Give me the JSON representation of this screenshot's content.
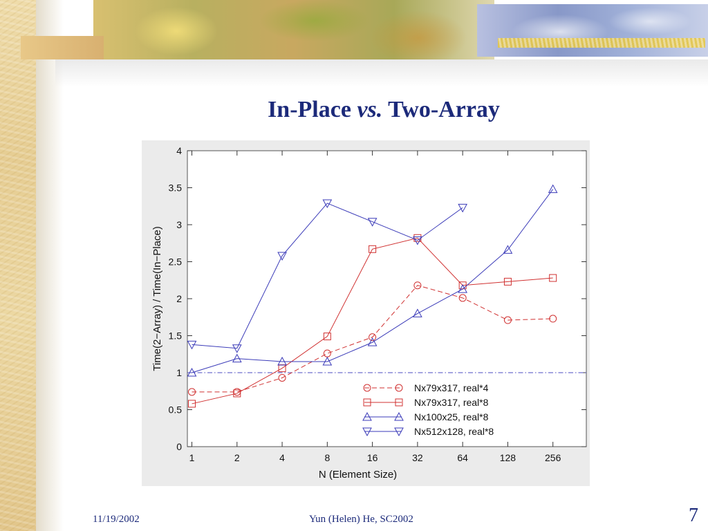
{
  "slide": {
    "title_prefix": "In-Place ",
    "title_italic": "vs.",
    "title_suffix": " Two-Array",
    "footer_date": "11/19/2002",
    "footer_author": "Yun (Helen) He, SC2002",
    "page_number": "7"
  },
  "chart_data": {
    "type": "line",
    "title": "",
    "xlabel": "N (Element Size)",
    "ylabel": "Time(2−Array) / Time(In−Place)",
    "x_scale": "log2",
    "x": [
      1,
      2,
      4,
      8,
      16,
      32,
      64,
      128,
      256
    ],
    "x_tick_labels": [
      "1",
      "2",
      "4",
      "8",
      "16",
      "32",
      "64",
      "128",
      "256"
    ],
    "ylim": [
      0,
      4
    ],
    "y_ticks": [
      0,
      0.5,
      1,
      1.5,
      2,
      2.5,
      3,
      3.5,
      4
    ],
    "y_tick_labels": [
      "0",
      "0.5",
      "1",
      "1.5",
      "2",
      "2.5",
      "3",
      "3.5",
      "4"
    ],
    "reference_line": 1,
    "grid": false,
    "legend_position": "bottom-right",
    "series": [
      {
        "name": "Nx79x317, real*4",
        "color": "#d03030",
        "dash": "dashed",
        "marker": "circle",
        "x": [
          1,
          2,
          4,
          8,
          16,
          32,
          64,
          128,
          256
        ],
        "values": [
          0.74,
          0.74,
          0.93,
          1.26,
          1.48,
          2.18,
          2.01,
          1.71,
          1.73
        ]
      },
      {
        "name": "Nx79x317, real*8",
        "color": "#d03030",
        "dash": "solid",
        "marker": "square",
        "x": [
          1,
          2,
          4,
          8,
          16,
          32,
          64,
          128,
          256
        ],
        "values": [
          0.58,
          0.72,
          1.06,
          1.49,
          2.67,
          2.82,
          2.18,
          2.23,
          2.28
        ]
      },
      {
        "name": "Nx100x25, real*8",
        "color": "#3a3ab8",
        "dash": "solid",
        "marker": "triangle-up",
        "x": [
          1,
          2,
          4,
          8,
          16,
          32,
          64,
          128,
          256
        ],
        "values": [
          1.0,
          1.19,
          1.15,
          1.15,
          1.41,
          1.8,
          2.13,
          2.66,
          3.48
        ]
      },
      {
        "name": "Nx512x128, real*8",
        "color": "#3a3ab8",
        "dash": "solid",
        "marker": "triangle-down",
        "x": [
          1,
          2,
          4,
          8,
          16,
          32,
          64
        ],
        "values": [
          1.38,
          1.33,
          2.58,
          3.29,
          3.04,
          2.79,
          3.23
        ]
      }
    ]
  }
}
